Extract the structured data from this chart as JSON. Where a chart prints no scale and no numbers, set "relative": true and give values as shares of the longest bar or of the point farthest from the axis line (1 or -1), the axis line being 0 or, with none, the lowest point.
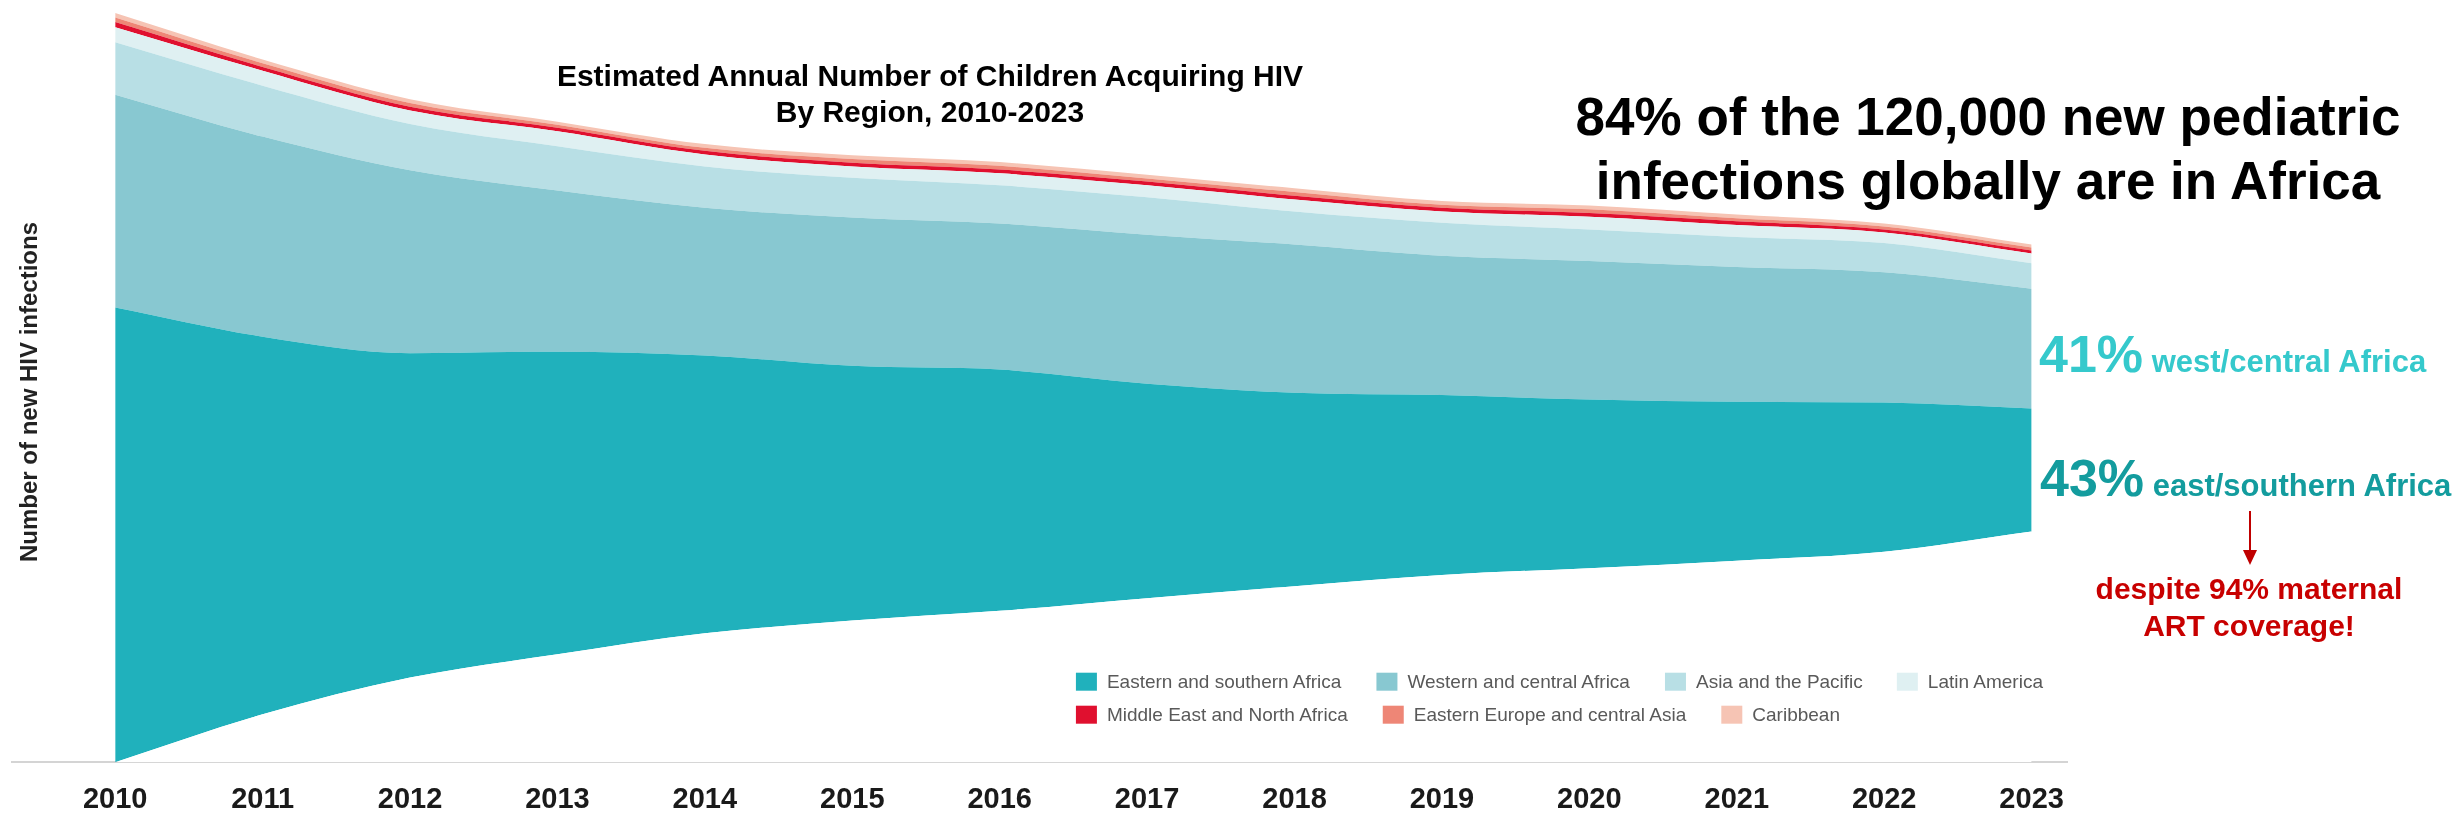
{
  "chart_data": {
    "type": "area",
    "title": "Estimated Annual Number of Children Acquiring HIV",
    "subtitle": "By Region, 2010-2023",
    "ylabel": "Number of new HIV infections",
    "x": [
      2010,
      2011,
      2012,
      2013,
      2014,
      2015,
      2016,
      2017,
      2018,
      2019,
      2020,
      2021,
      2022,
      2023
    ],
    "xlim": [
      2009.3,
      2023.24
    ],
    "xticks": [
      2010,
      2011,
      2012,
      2013,
      2014,
      2015,
      2016,
      2017,
      2018,
      2019,
      2020,
      2021,
      2022,
      2023
    ],
    "relative": true,
    "stacked": true,
    "series": [
      {
        "color": "#ffffff",
        "values": [
          0,
          0.064,
          0.113,
          0.144,
          0.172,
          0.189,
          0.202,
          0.219,
          0.235,
          0.25,
          0.259,
          0.269,
          0.281,
          0.308
        ]
      },
      {
        "name": "Eastern and southern Africa",
        "color": "#20b1bc",
        "values": [
          0.607,
          0.504,
          0.433,
          0.404,
          0.371,
          0.34,
          0.322,
          0.286,
          0.258,
          0.24,
          0.225,
          0.212,
          0.199,
          0.164
        ]
      },
      {
        "name": "Western and central Africa",
        "color": "#88c8d1",
        "values": [
          0.284,
          0.267,
          0.244,
          0.215,
          0.197,
          0.198,
          0.195,
          0.199,
          0.198,
          0.186,
          0.185,
          0.18,
          0.174,
          0.16
        ]
      },
      {
        "name": "Asia and the Pacific",
        "color": "#b8dfe5",
        "values": [
          0.07,
          0.068,
          0.062,
          0.059,
          0.055,
          0.053,
          0.051,
          0.05,
          0.044,
          0.044,
          0.042,
          0.04,
          0.039,
          0.034
        ]
      },
      {
        "name": "Latin America",
        "color": "#dff0f2",
        "values": [
          0.02,
          0.02,
          0.018,
          0.02,
          0.016,
          0.015,
          0.016,
          0.016,
          0.016,
          0.015,
          0.017,
          0.016,
          0.014,
          0.013
        ]
      },
      {
        "name": "Middle East and North Africa",
        "color": "#e0102f",
        "values": [
          0.007,
          0.005,
          0.005,
          0.005,
          0.005,
          0.005,
          0.005,
          0.005,
          0.005,
          0.005,
          0.005,
          0.005,
          0.004,
          0.004
        ]
      },
      {
        "name": "Eastern Europe and central Asia",
        "color": "#ee8676",
        "values": [
          0.006,
          0.005,
          0.005,
          0.004,
          0.004,
          0.005,
          0.005,
          0.004,
          0.005,
          0.004,
          0.005,
          0.004,
          0.004,
          0.004
        ]
      },
      {
        "name": "Caribbean",
        "color": "#f6c4b4",
        "values": [
          0.006,
          0.005,
          0.005,
          0.004,
          0.005,
          0.005,
          0.005,
          0.005,
          0.005,
          0.005,
          0.005,
          0.005,
          0.004,
          0.004
        ]
      }
    ],
    "legend": "bottom right",
    "annotations": [
      "84% of the 120,000 new pediatric infections globally are in Africa",
      "41% west/central Africa",
      "43% east/southern Africa",
      "despite 94% maternal ART coverage!"
    ]
  }
}
